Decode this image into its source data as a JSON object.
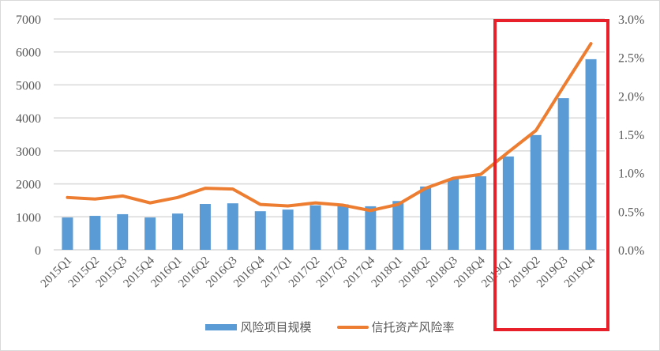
{
  "chart_data": {
    "type": "bar+line",
    "title": "",
    "categories": [
      "2015Q1",
      "2015Q2",
      "2015Q3",
      "2015Q4",
      "2016Q1",
      "2016Q2",
      "2016Q3",
      "2016Q4",
      "2017Q1",
      "2017Q2",
      "2017Q3",
      "2017Q4",
      "2018Q1",
      "2018Q2",
      "2018Q3",
      "2018Q4",
      "2019Q1",
      "2019Q2",
      "2019Q3",
      "2019Q4"
    ],
    "series": [
      {
        "name": "风险项目规模",
        "type": "bar",
        "axis": "left",
        "color": "#5b9bd5",
        "values": [
          980,
          1030,
          1080,
          980,
          1100,
          1390,
          1410,
          1170,
          1220,
          1350,
          1380,
          1320,
          1480,
          1920,
          2160,
          2230,
          2830,
          3480,
          4600,
          5780
        ]
      },
      {
        "name": "信托资产风险率",
        "type": "line",
        "axis": "right",
        "color": "#ed7d31",
        "values": [
          0.68,
          0.66,
          0.7,
          0.61,
          0.68,
          0.8,
          0.79,
          0.59,
          0.57,
          0.61,
          0.58,
          0.51,
          0.59,
          0.8,
          0.93,
          0.98,
          1.27,
          1.55,
          2.12,
          2.68
        ]
      }
    ],
    "left_axis": {
      "ylim": [
        0,
        7000
      ],
      "ticks": [
        "0",
        "1000",
        "2000",
        "3000",
        "4000",
        "5000",
        "6000",
        "7000"
      ]
    },
    "right_axis": {
      "ylim": [
        0,
        3.0
      ],
      "ticks": [
        "0.0%",
        "0.5%",
        "1.0%",
        "1.5%",
        "2.0%",
        "2.5%",
        "3.0%"
      ]
    },
    "grid": true,
    "legend_position": "bottom",
    "annotation": {
      "type": "highlight-box",
      "color": "#e8202a",
      "covers": [
        "2019Q1",
        "2019Q2",
        "2019Q3",
        "2019Q4"
      ]
    }
  },
  "legend": {
    "bar_label": "风险项目规模",
    "line_label": "信托资产风险率"
  }
}
